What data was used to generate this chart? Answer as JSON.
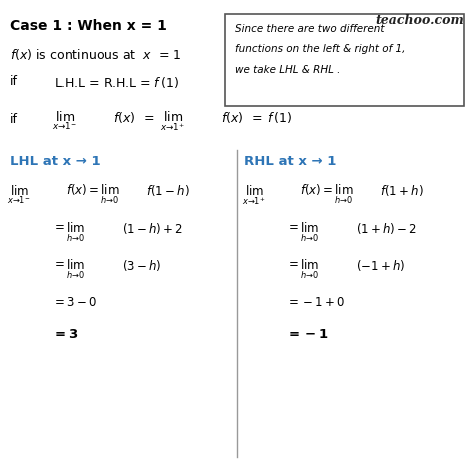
{
  "background_color": "#ffffff",
  "title_text": "Case 1 : When x = 1",
  "watermark": "teachoo.com",
  "box_text_lines": [
    "Since there are two different",
    "functions on the left & right of 1,",
    "we take LHL & RHL ."
  ],
  "line1": "f(x) is continuous at  x  = 1",
  "line2_prefix": "if       L.H.L = R.H.L = ",
  "line3_prefix": "if",
  "lhl_label": "LHL at x → 1",
  "rhl_label": "RHL at x → 1",
  "blue_color": "#2E75B6",
  "text_color": "#000000",
  "watermark_color": "#333333"
}
